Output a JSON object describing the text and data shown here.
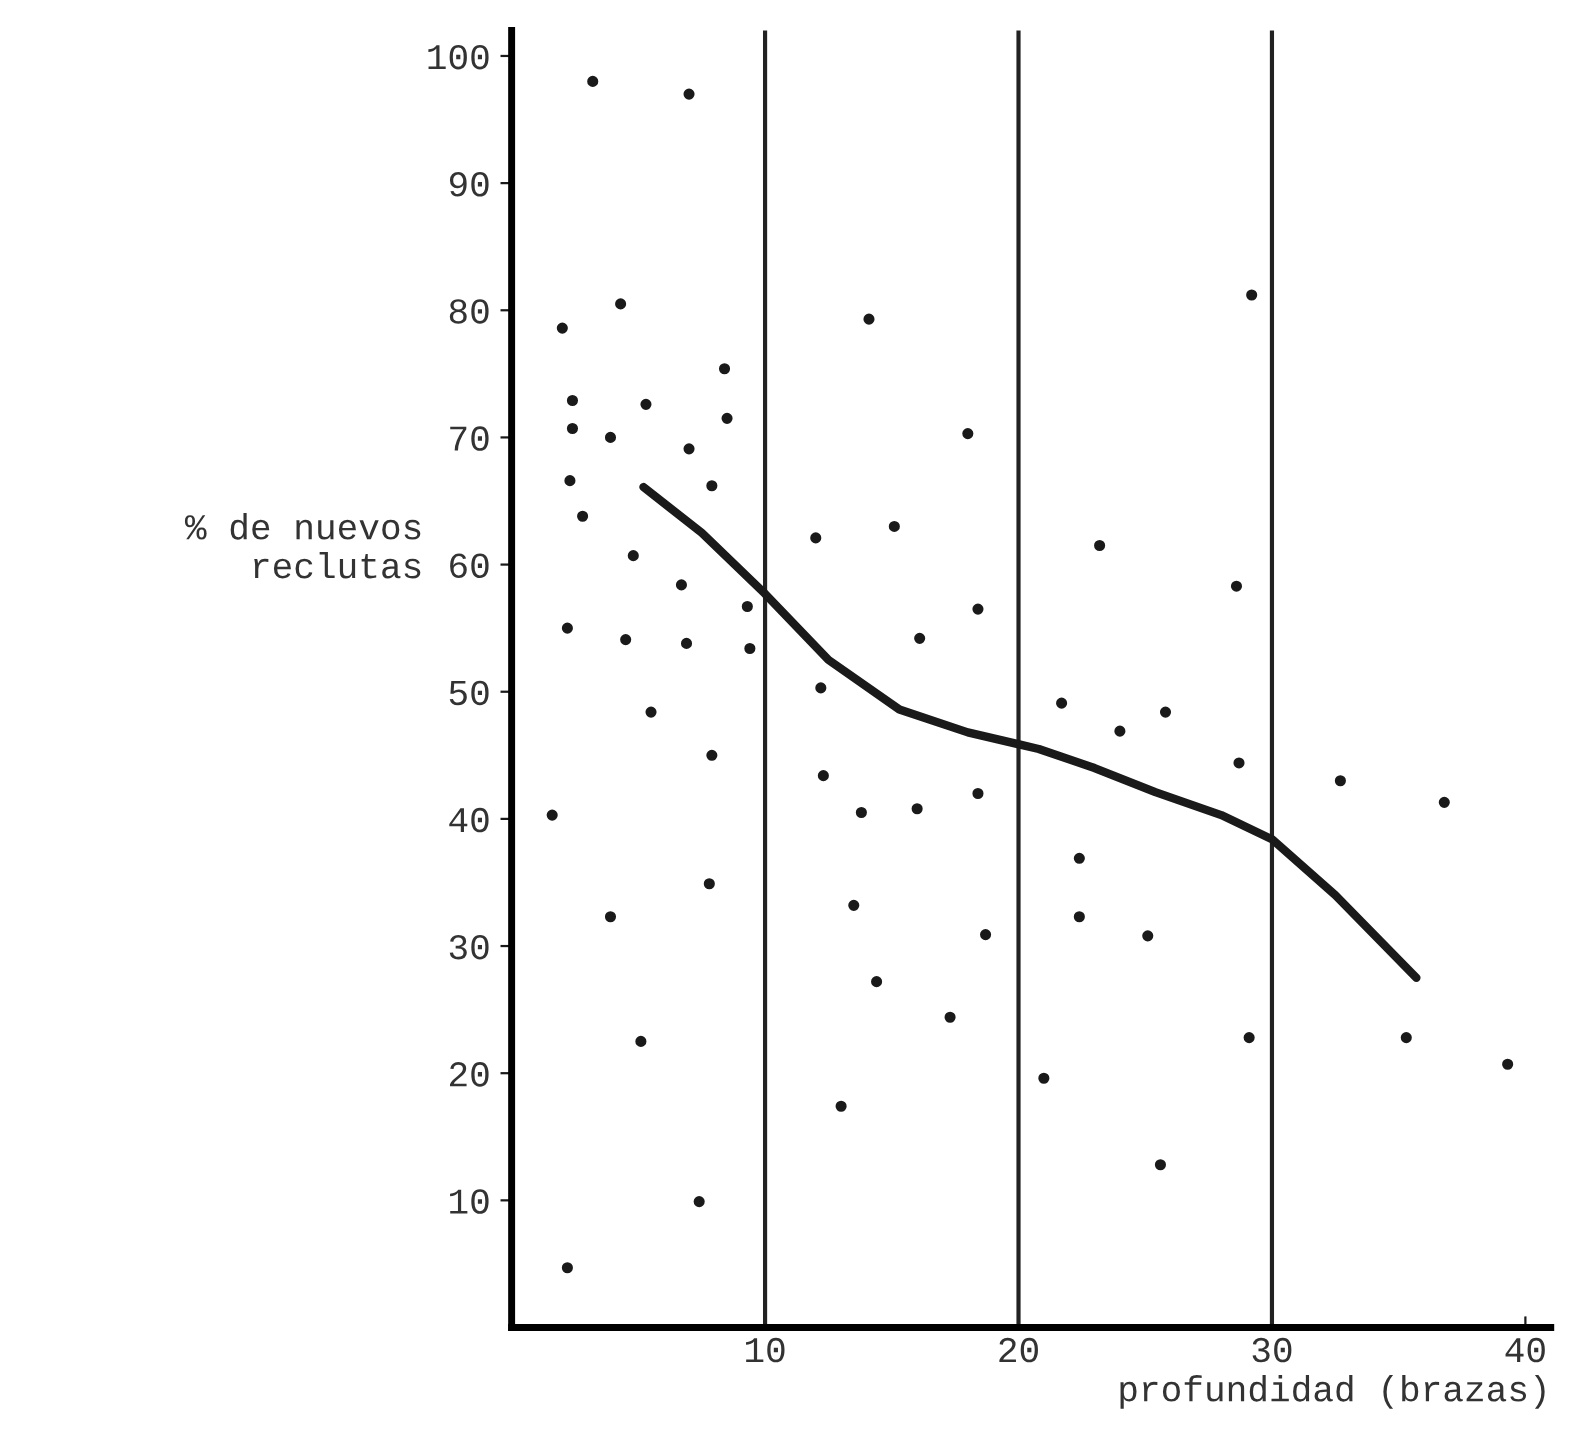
{
  "chart_data": {
    "type": "scatter",
    "xlabel": "profundidad (brazas)",
    "ylabel": "% de nuevos\nreclutas",
    "xlim": [
      0,
      41
    ],
    "ylim": [
      0,
      102
    ],
    "xticks": [
      10,
      20,
      30,
      40
    ],
    "yticks": [
      10,
      20,
      30,
      40,
      50,
      60,
      70,
      80,
      90,
      100
    ],
    "grid": false,
    "legend": false,
    "marker": "circle",
    "ref_lines": [
      {
        "axis": "x",
        "value": 10,
        "color": "#222222"
      },
      {
        "axis": "x",
        "value": 20,
        "color": "#222222"
      },
      {
        "axis": "x",
        "value": 30,
        "color": "#222222"
      }
    ],
    "series": [
      {
        "color": "#1a1a1a",
        "x": [
          3.2,
          7.0,
          4.3,
          2.0,
          14.1,
          8.4,
          2.4,
          5.3,
          8.5,
          2.4,
          3.9,
          18.0,
          7.0,
          2.3,
          7.9,
          2.8,
          12.0,
          15.1,
          4.8,
          6.7,
          9.3,
          18.4,
          2.2,
          4.5,
          6.9,
          9.4,
          16.1,
          12.2,
          5.5,
          7.9,
          12.3,
          29.2,
          23.2,
          28.6,
          21.7,
          25.8,
          24.0,
          28.7,
          32.7,
          1.6,
          7.8,
          3.9,
          5.1,
          7.4,
          2.2,
          13.8,
          16.0,
          18.4,
          13.5,
          18.7,
          14.4,
          17.3,
          13.0,
          36.8,
          22.4,
          22.4,
          25.1,
          29.1,
          35.3,
          39.3,
          21.0,
          25.6
        ],
        "values": [
          98,
          97,
          80.5,
          78.6,
          79.3,
          75.4,
          72.9,
          72.6,
          71.5,
          70.7,
          70.0,
          70.3,
          69.1,
          66.6,
          66.2,
          63.8,
          62.1,
          63.0,
          60.7,
          58.4,
          56.7,
          56.5,
          55.0,
          54.1,
          53.8,
          53.4,
          54.2,
          50.3,
          48.4,
          45.0,
          43.4,
          81.2,
          61.5,
          58.3,
          49.1,
          48.4,
          46.9,
          44.4,
          43.0,
          40.3,
          34.9,
          32.3,
          22.5,
          9.9,
          4.7,
          40.5,
          40.8,
          42.0,
          33.2,
          30.9,
          27.2,
          24.4,
          17.4,
          41.3,
          36.9,
          32.3,
          30.8,
          22.8,
          22.8,
          20.7,
          19.6,
          12.8
        ]
      },
      {
        "type": "line",
        "color": "#1a1a1a",
        "marker": "none",
        "line_style": "solid",
        "x": [
          5.2,
          7.5,
          10,
          12.5,
          15.3,
          18,
          20.8,
          23,
          25.4,
          28,
          30,
          32.5,
          35.7
        ],
        "values": [
          66.1,
          62.5,
          57.7,
          52.5,
          48.6,
          46.8,
          45.5,
          44.0,
          42.1,
          40.3,
          38.4,
          34.0,
          27.5
        ]
      }
    ]
  }
}
